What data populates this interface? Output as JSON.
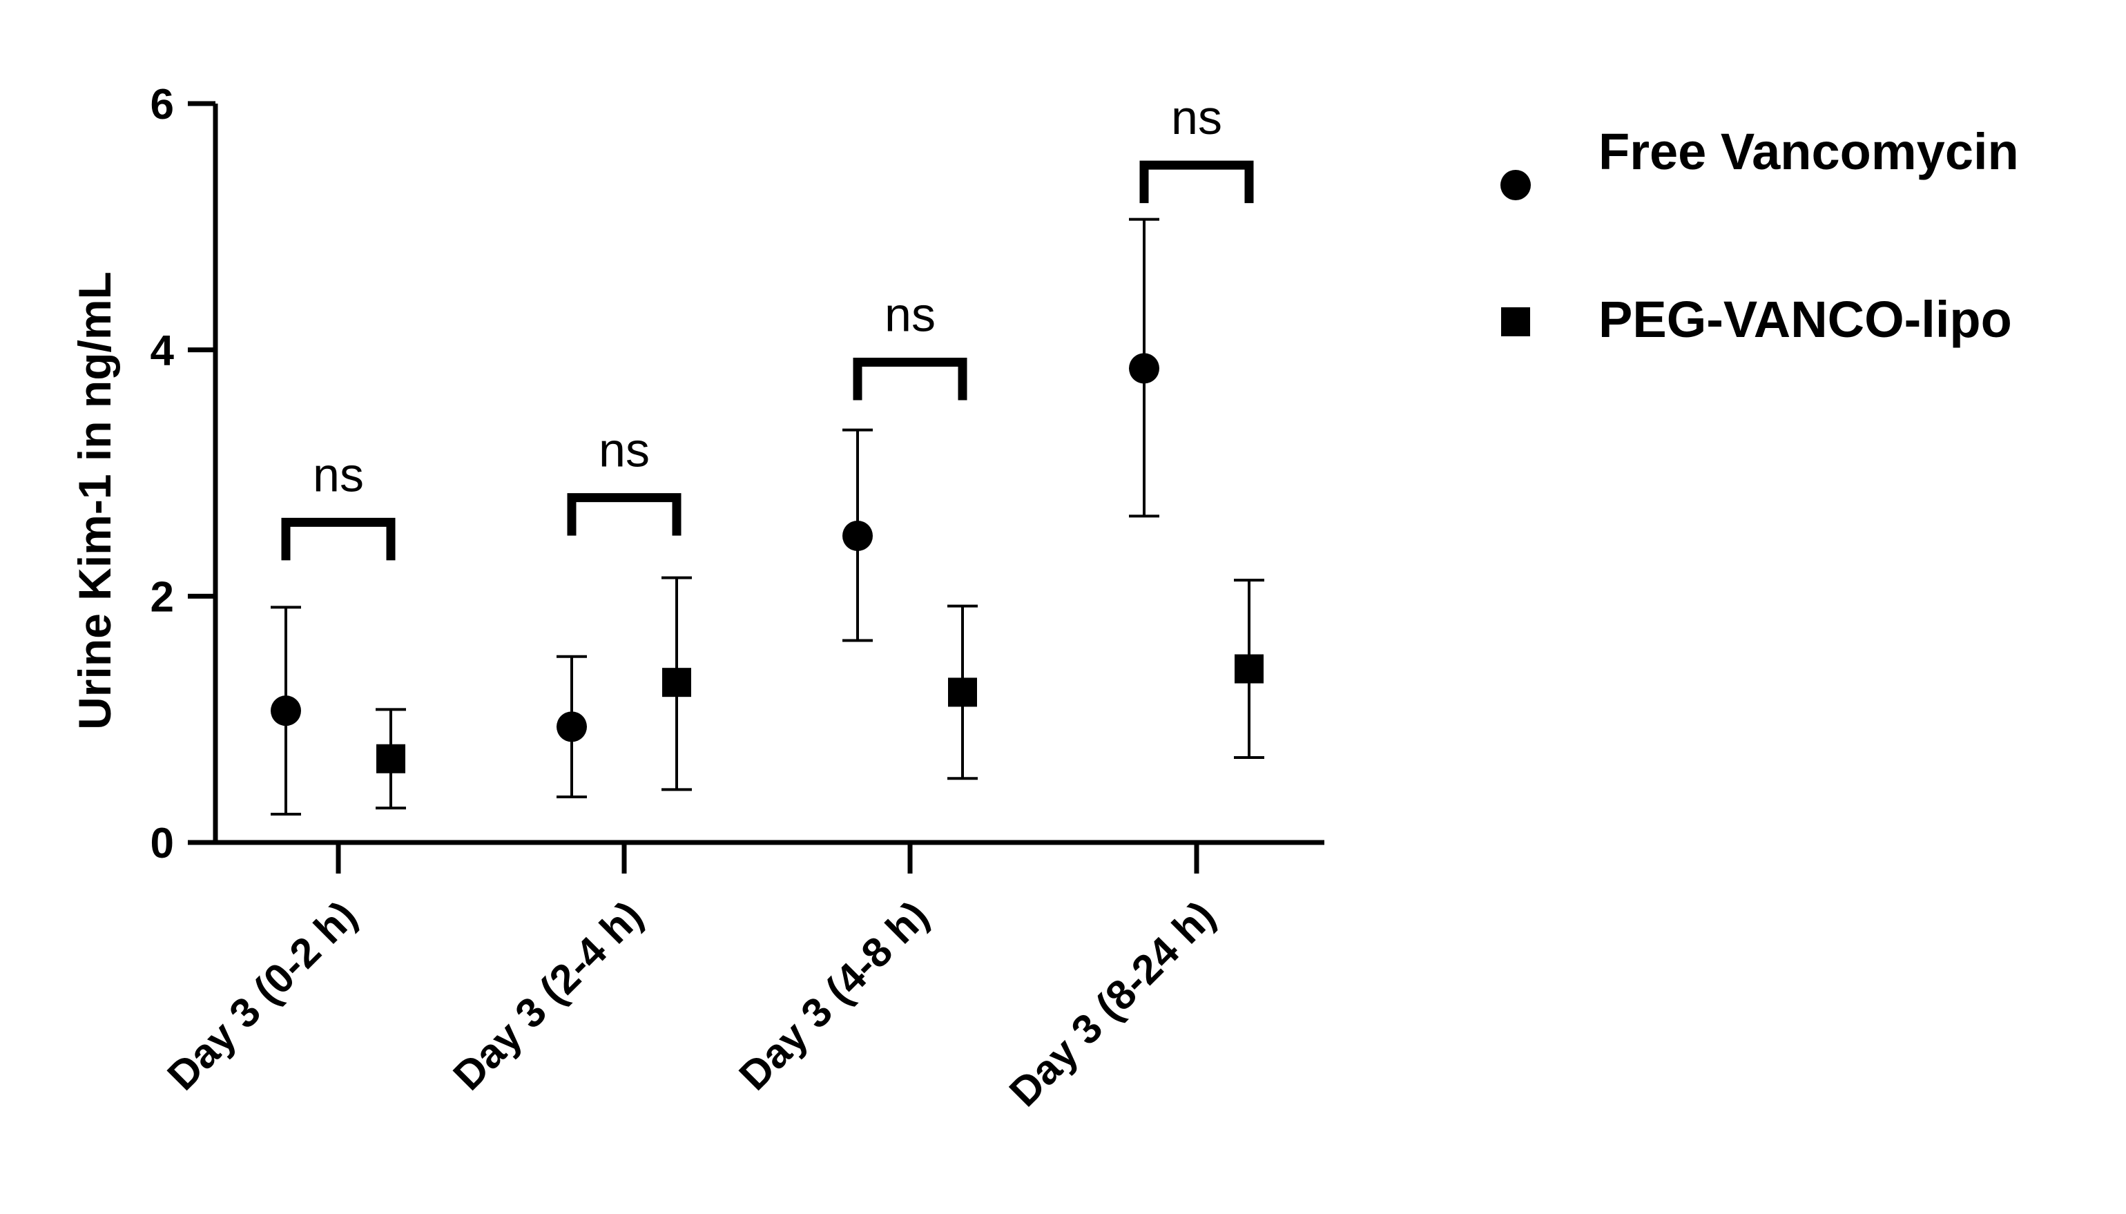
{
  "chart_data": {
    "type": "scatter",
    "title": "",
    "xlabel": "",
    "ylabel": "Urine Kim-1 in ng/mL",
    "ylim": [
      0,
      6
    ],
    "yticks": [
      "0",
      "2",
      "4",
      "6"
    ],
    "categories": [
      "Day 3 (0-2 h)",
      "Day 3 (2-4 h)",
      "Day 3 (4-8 h)",
      "Day 3 (8-24 h)"
    ],
    "grid": false,
    "legend_position": "right",
    "series": [
      {
        "name": "Free Vancomycin",
        "marker": "circle",
        "color": "#000000",
        "values": [
          1.07,
          0.94,
          2.49,
          3.85
        ],
        "error_low": [
          0.23,
          0.37,
          1.64,
          2.65
        ],
        "error_high": [
          1.91,
          1.51,
          3.35,
          5.06
        ]
      },
      {
        "name": "PEG-VANCO-lipo",
        "marker": "square",
        "color": "#000000",
        "values": [
          0.68,
          1.3,
          1.22,
          1.41
        ],
        "error_low": [
          0.28,
          0.43,
          0.52,
          0.69
        ],
        "error_high": [
          1.08,
          2.15,
          1.92,
          2.13
        ]
      }
    ],
    "significance": [
      {
        "label": "ns",
        "bracket_y": 2.6
      },
      {
        "label": "ns",
        "bracket_y": 2.8
      },
      {
        "label": "ns",
        "bracket_y": 3.9
      },
      {
        "label": "ns",
        "bracket_y": 5.5
      }
    ]
  }
}
